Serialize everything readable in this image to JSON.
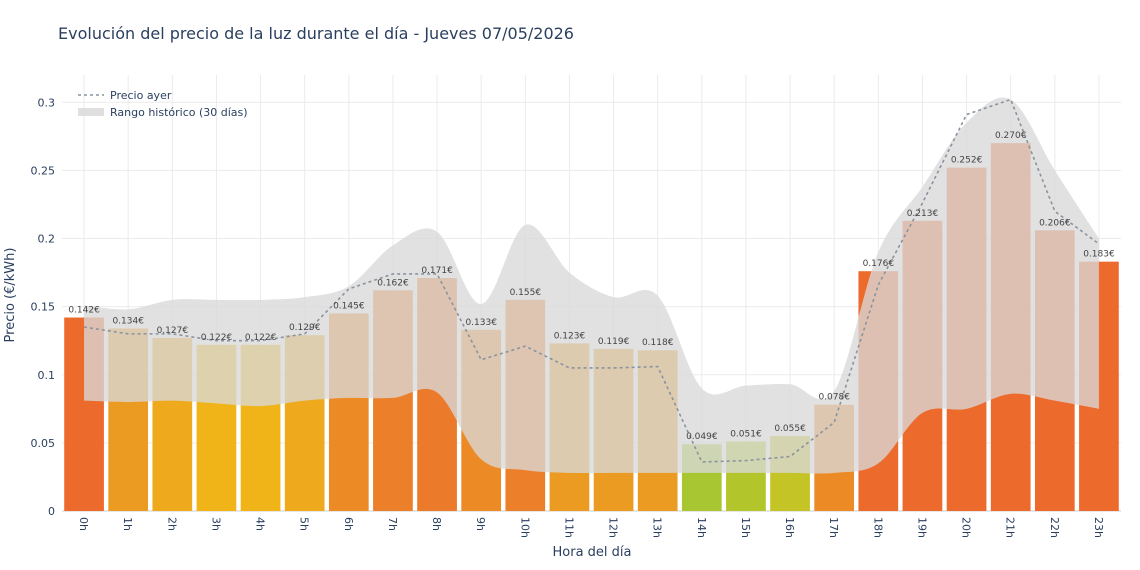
{
  "chart_data": {
    "type": "bar",
    "title": "Evolución del precio de la luz durante el día - Jueves 07/05/2026",
    "xlabel": "Hora del día",
    "ylabel": "Precio (€/kWh)",
    "ylim": [
      0,
      0.32
    ],
    "yticks": [
      "0",
      "0.05",
      "0.1",
      "0.15",
      "0.2",
      "0.25",
      "0.3"
    ],
    "ytick_values": [
      0,
      0.05,
      0.1,
      0.15,
      0.2,
      0.25,
      0.3
    ],
    "grid": true,
    "legend_position": "top-left",
    "categories": [
      "0h",
      "1h",
      "2h",
      "3h",
      "4h",
      "5h",
      "6h",
      "7h",
      "8h",
      "9h",
      "10h",
      "11h",
      "12h",
      "13h",
      "14h",
      "15h",
      "16h",
      "17h",
      "18h",
      "19h",
      "20h",
      "21h",
      "22h",
      "23h"
    ],
    "values": [
      0.142,
      0.134,
      0.127,
      0.122,
      0.122,
      0.129,
      0.145,
      0.162,
      0.171,
      0.133,
      0.155,
      0.123,
      0.119,
      0.118,
      0.049,
      0.051,
      0.055,
      0.078,
      0.176,
      0.213,
      0.252,
      0.27,
      0.206,
      0.183
    ],
    "labels": [
      "0.142€",
      "0.134€",
      "0.127€",
      "0.122€",
      "0.122€",
      "0.129€",
      "0.145€",
      "0.162€",
      "0.171€",
      "0.133€",
      "0.155€",
      "0.123€",
      "0.119€",
      "0.118€",
      "0.049€",
      "0.051€",
      "0.055€",
      "0.078€",
      "0.176€",
      "0.213€",
      "0.252€",
      "0.270€",
      "0.206€",
      "0.183€"
    ],
    "bar_colors": [
      "#ec6a2c",
      "#eb9b22",
      "#eeaa1c",
      "#f0b418",
      "#f0b418",
      "#eeaa1c",
      "#ec8a26",
      "#ec7f2a",
      "#ec7a2b",
      "#ec8a26",
      "#ec7f2a",
      "#eb9b22",
      "#eb9b22",
      "#eb9b22",
      "#a8c632",
      "#b2c62c",
      "#c4c426",
      "#ec8a26",
      "#ec6a2c",
      "#ec6a2c",
      "#ec6a2c",
      "#ec6a2c",
      "#ec6a2c",
      "#ec6a2c"
    ],
    "series": [
      {
        "name": "Precio ayer",
        "type": "line",
        "color": "#8a939e",
        "values": [
          0.135,
          0.13,
          0.13,
          0.125,
          0.125,
          0.13,
          0.163,
          0.174,
          0.174,
          0.111,
          0.121,
          0.105,
          0.105,
          0.106,
          0.036,
          0.037,
          0.04,
          0.065,
          0.166,
          0.226,
          0.291,
          0.302,
          0.22,
          0.196
        ]
      },
      {
        "name": "Rango histórico (30 días)",
        "type": "band",
        "color": "#d9d9d9",
        "upper": [
          0.151,
          0.148,
          0.155,
          0.155,
          0.155,
          0.157,
          0.165,
          0.195,
          0.205,
          0.152,
          0.21,
          0.175,
          0.157,
          0.158,
          0.09,
          0.092,
          0.093,
          0.088,
          0.19,
          0.238,
          0.285,
          0.302,
          0.25,
          0.2
        ],
        "lower": [
          0.081,
          0.08,
          0.081,
          0.079,
          0.077,
          0.081,
          0.083,
          0.083,
          0.087,
          0.038,
          0.03,
          0.028,
          0.028,
          0.028,
          0.028,
          0.028,
          0.028,
          0.028,
          0.035,
          0.072,
          0.075,
          0.086,
          0.081,
          0.075
        ]
      }
    ]
  }
}
